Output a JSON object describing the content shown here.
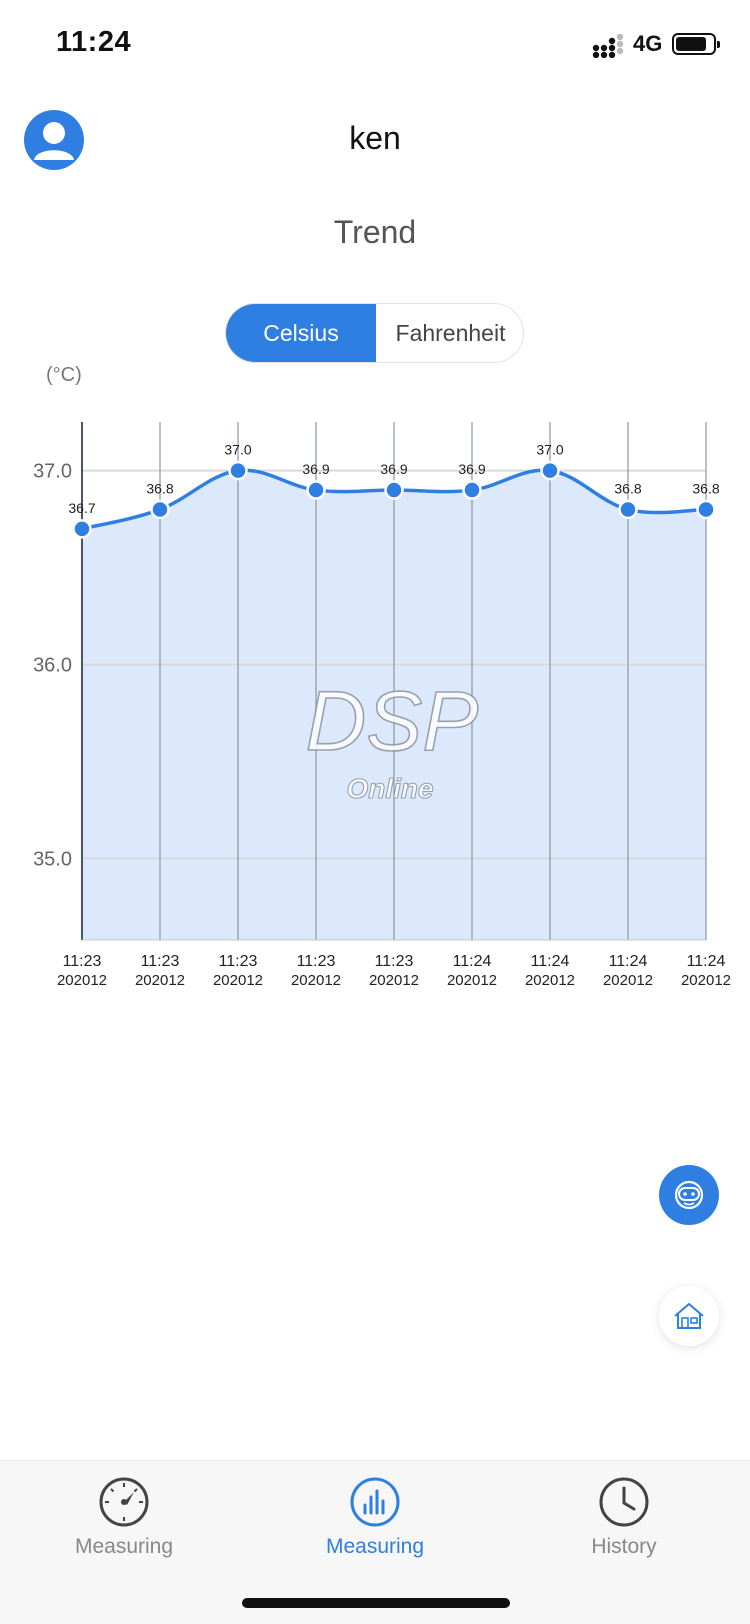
{
  "status_bar": {
    "time": "11:24",
    "network": "4G"
  },
  "header": {
    "user_name": "ken",
    "title": "Trend"
  },
  "unit_toggle": {
    "options": [
      "Celsius",
      "Fahrenheit"
    ],
    "selected": "Celsius"
  },
  "chart_unit_label": "(°C)",
  "chart_data": {
    "type": "area",
    "categories": [
      "11:23",
      "11:23",
      "11:23",
      "11:23",
      "11:23",
      "11:24",
      "11:24",
      "11:24",
      "11:24"
    ],
    "category_sublabels": [
      "202012",
      "202012",
      "202012",
      "202012",
      "202012",
      "202012",
      "202012",
      "202012",
      "202012"
    ],
    "values": [
      36.7,
      36.8,
      37.0,
      36.9,
      36.9,
      36.9,
      37.0,
      36.8,
      36.8
    ],
    "value_labels": [
      "36.7",
      "36.8",
      "37.0",
      "36.9",
      "36.9",
      "36.9",
      "37.0",
      "36.8",
      "36.8"
    ],
    "yticks": [
      "37.0",
      "36.0",
      "35.0"
    ],
    "ytick_values": [
      37.0,
      36.0,
      35.0
    ],
    "ylim": [
      34.58,
      37.22
    ],
    "grid": true,
    "line_color": "#2f7fe3",
    "fill_color": "#dce8fb"
  },
  "watermark": {
    "line1": "DSP",
    "line2": "Online"
  },
  "fabs": {
    "robot_icon": "robot-icon",
    "home_icon": "home-icon"
  },
  "tab_bar": {
    "tabs": [
      {
        "label": "Measuring",
        "icon": "gauge-icon",
        "active": false
      },
      {
        "label": "Measuring",
        "icon": "bar-chart-icon",
        "active": true
      },
      {
        "label": "History",
        "icon": "clock-icon",
        "active": false
      }
    ]
  },
  "colors": {
    "accent": "#2f7fe3",
    "inactive": "#888888"
  }
}
